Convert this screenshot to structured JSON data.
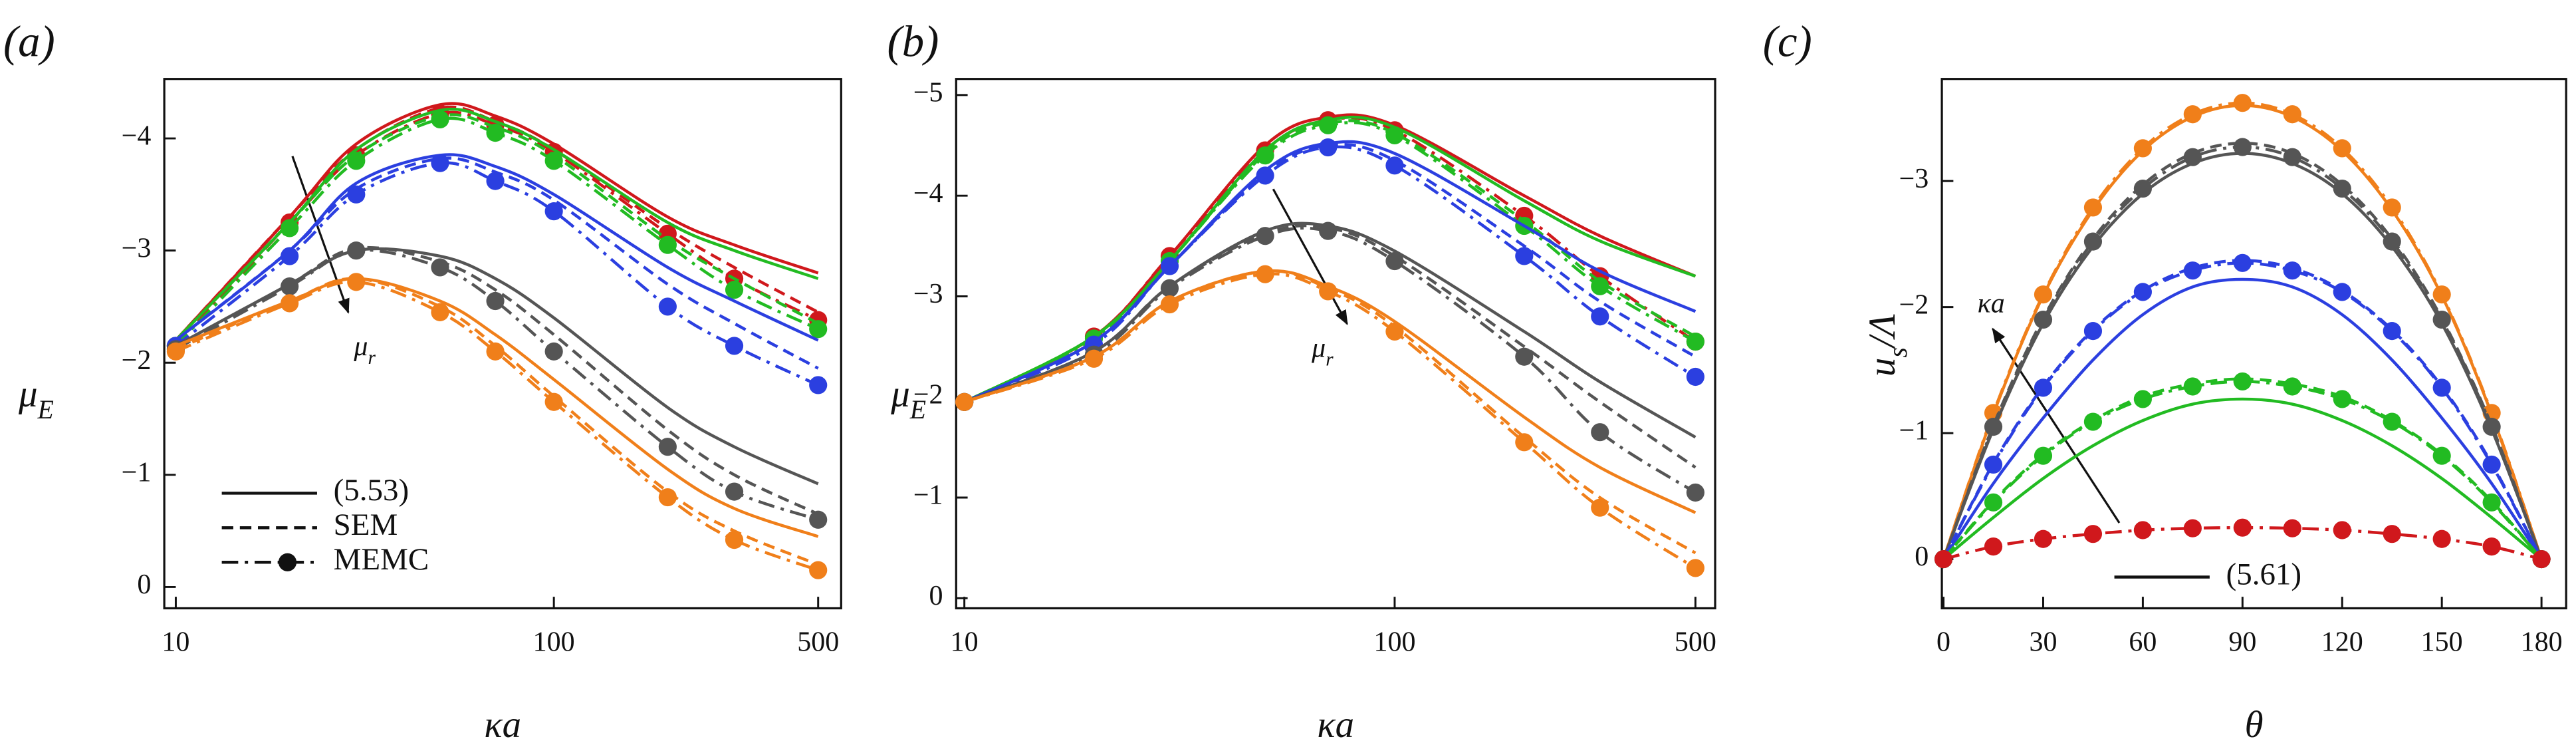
{
  "chart_data": [
    {
      "type": "line",
      "panel_label": "(a)",
      "xscale": "log",
      "xlabel": "κa",
      "ylabel": {
        "base": "μ",
        "sub": "E"
      },
      "annotation": {
        "base": "μ",
        "sub": "r"
      },
      "xlim": [
        10,
        500
      ],
      "xticks": [
        10,
        100,
        500
      ],
      "ylim": [
        0.19,
        -4.53
      ],
      "yticks": [
        0,
        {
          "value": -1,
          "label": "−1"
        },
        {
          "value": -2,
          "label": "−2"
        },
        {
          "value": -3,
          "label": "−3"
        },
        {
          "value": -4,
          "label": "−4"
        }
      ],
      "legend": [
        {
          "label": "(5.53)",
          "style": "solid"
        },
        {
          "label": "SEM",
          "style": "dashed"
        },
        {
          "label": "MEMC",
          "style": "dashdot",
          "marker": true
        }
      ],
      "x": [
        10,
        20,
        30,
        50,
        70,
        100,
        200,
        300,
        500
      ],
      "series": [
        {
          "color": "#d0181c",
          "style": "solid",
          "values": [
            -2.2,
            -3.3,
            -3.95,
            -4.3,
            -4.2,
            -3.95,
            -3.3,
            -3.05,
            -2.8
          ]
        },
        {
          "color": "#d0181c",
          "style": "dashed",
          "values": [
            -2.2,
            -3.3,
            -3.9,
            -4.27,
            -4.15,
            -3.9,
            -3.2,
            -2.85,
            -2.45
          ]
        },
        {
          "color": "#d0181c",
          "style": "dashdot",
          "marker": true,
          "values": [
            -2.15,
            -3.25,
            -3.85,
            -4.22,
            -4.12,
            -3.88,
            -3.15,
            -2.75,
            -2.38
          ]
        },
        {
          "color": "#22bb22",
          "style": "solid",
          "values": [
            -2.2,
            -3.25,
            -3.9,
            -4.25,
            -4.15,
            -3.9,
            -3.25,
            -3.0,
            -2.75
          ]
        },
        {
          "color": "#22bb22",
          "style": "dashed",
          "values": [
            -2.2,
            -3.25,
            -3.85,
            -4.2,
            -4.1,
            -3.85,
            -3.1,
            -2.75,
            -2.35
          ]
        },
        {
          "color": "#22bb22",
          "style": "dashdot",
          "marker": true,
          "values": [
            -2.15,
            -3.2,
            -3.8,
            -4.17,
            -4.05,
            -3.8,
            -3.05,
            -2.65,
            -2.3
          ]
        },
        {
          "color": "#2b3fe0",
          "style": "solid",
          "values": [
            -2.2,
            -3.0,
            -3.6,
            -3.85,
            -3.75,
            -3.5,
            -2.85,
            -2.55,
            -2.2
          ]
        },
        {
          "color": "#2b3fe0",
          "style": "dashed",
          "values": [
            -2.2,
            -3.0,
            -3.55,
            -3.82,
            -3.7,
            -3.45,
            -2.7,
            -2.35,
            -1.95
          ]
        },
        {
          "color": "#2b3fe0",
          "style": "dashdot",
          "marker": true,
          "values": [
            -2.15,
            -2.95,
            -3.5,
            -3.78,
            -3.62,
            -3.35,
            -2.5,
            -2.15,
            -1.8
          ]
        },
        {
          "color": "#555555",
          "style": "solid",
          "values": [
            -2.15,
            -2.7,
            -3.0,
            -2.95,
            -2.75,
            -2.4,
            -1.6,
            -1.25,
            -0.92
          ]
        },
        {
          "color": "#555555",
          "style": "dashed",
          "values": [
            -2.15,
            -2.7,
            -3.02,
            -2.9,
            -2.65,
            -2.25,
            -1.4,
            -1.0,
            -0.65
          ]
        },
        {
          "color": "#555555",
          "style": "dashdot",
          "marker": true,
          "values": [
            -2.12,
            -2.68,
            -3.0,
            -2.85,
            -2.55,
            -2.1,
            -1.25,
            -0.85,
            -0.6
          ]
        },
        {
          "color": "#f07f1a",
          "style": "solid",
          "values": [
            -2.15,
            -2.55,
            -2.75,
            -2.55,
            -2.25,
            -1.85,
            -1.05,
            -0.7,
            -0.45
          ]
        },
        {
          "color": "#f07f1a",
          "style": "dashed",
          "values": [
            -2.12,
            -2.55,
            -2.75,
            -2.5,
            -2.15,
            -1.7,
            -0.85,
            -0.5,
            -0.2
          ]
        },
        {
          "color": "#f07f1a",
          "style": "dashdot",
          "marker": true,
          "values": [
            -2.1,
            -2.53,
            -2.72,
            -2.45,
            -2.1,
            -1.65,
            -0.8,
            -0.42,
            -0.15
          ]
        }
      ]
    },
    {
      "type": "line",
      "panel_label": "(b)",
      "xscale": "log",
      "xlabel": "κa",
      "ylabel": {
        "base": "μ",
        "sub": "E"
      },
      "annotation": {
        "base": "μ",
        "sub": "r"
      },
      "xlim": [
        10,
        500
      ],
      "xticks": [
        10,
        100,
        500
      ],
      "ylim": [
        0.1,
        -5.16
      ],
      "yticks": [
        0,
        {
          "value": -1,
          "label": "−1"
        },
        {
          "value": -2,
          "label": "−2"
        },
        {
          "value": -3,
          "label": "−3"
        },
        {
          "value": -4,
          "label": "−4"
        },
        {
          "value": -5,
          "label": "−5"
        }
      ],
      "x": [
        10,
        20,
        30,
        50,
        70,
        100,
        200,
        300,
        500
      ],
      "series": [
        {
          "color": "#d0181c",
          "style": "solid",
          "values": [
            -1.95,
            -2.6,
            -3.4,
            -4.5,
            -4.78,
            -4.7,
            -4.0,
            -3.6,
            -3.2
          ]
        },
        {
          "color": "#d0181c",
          "style": "dashdot",
          "marker": true,
          "values": [
            -1.95,
            -2.6,
            -3.4,
            -4.45,
            -4.75,
            -4.65,
            -3.8,
            -3.2,
            -2.55
          ]
        },
        {
          "color": "#22bb22",
          "style": "solid",
          "values": [
            -1.95,
            -2.6,
            -3.35,
            -4.45,
            -4.75,
            -4.68,
            -3.95,
            -3.55,
            -3.2
          ]
        },
        {
          "color": "#22bb22",
          "style": "dashed",
          "values": [
            -1.95,
            -2.6,
            -3.35,
            -4.42,
            -4.72,
            -4.62,
            -3.75,
            -3.15,
            -2.6
          ]
        },
        {
          "color": "#22bb22",
          "style": "dashdot",
          "marker": true,
          "values": [
            -1.95,
            -2.58,
            -3.35,
            -4.4,
            -4.7,
            -4.6,
            -3.7,
            -3.1,
            -2.55
          ]
        },
        {
          "color": "#2b3fe0",
          "style": "solid",
          "values": [
            -1.95,
            -2.55,
            -3.3,
            -4.25,
            -4.52,
            -4.42,
            -3.7,
            -3.25,
            -2.85
          ]
        },
        {
          "color": "#2b3fe0",
          "style": "dashed",
          "values": [
            -1.95,
            -2.55,
            -3.3,
            -4.22,
            -4.5,
            -4.35,
            -3.5,
            -2.95,
            -2.4
          ]
        },
        {
          "color": "#2b3fe0",
          "style": "dashdot",
          "marker": true,
          "values": [
            -1.95,
            -2.52,
            -3.3,
            -4.2,
            -4.48,
            -4.3,
            -3.4,
            -2.8,
            -2.2
          ]
        },
        {
          "color": "#555555",
          "style": "solid",
          "values": [
            -1.95,
            -2.45,
            -3.1,
            -3.65,
            -3.7,
            -3.45,
            -2.65,
            -2.15,
            -1.6
          ]
        },
        {
          "color": "#555555",
          "style": "dashed",
          "values": [
            -1.95,
            -2.45,
            -3.1,
            -3.62,
            -3.68,
            -3.4,
            -2.5,
            -1.95,
            -1.3
          ]
        },
        {
          "color": "#555555",
          "style": "dashdot",
          "marker": true,
          "values": [
            -1.95,
            -2.42,
            -3.08,
            -3.6,
            -3.65,
            -3.35,
            -2.4,
            -1.65,
            -1.05
          ]
        },
        {
          "color": "#f07f1a",
          "style": "solid",
          "values": [
            -1.95,
            -2.4,
            -2.95,
            -3.25,
            -3.1,
            -2.75,
            -1.8,
            -1.3,
            -0.85
          ]
        },
        {
          "color": "#f07f1a",
          "style": "dashed",
          "values": [
            -1.95,
            -2.4,
            -2.95,
            -3.25,
            -3.08,
            -2.7,
            -1.6,
            -1.0,
            -0.45
          ]
        },
        {
          "color": "#f07f1a",
          "style": "dashdot",
          "marker": true,
          "values": [
            -1.95,
            -2.38,
            -2.92,
            -3.22,
            -3.05,
            -2.65,
            -1.55,
            -0.9,
            -0.3
          ]
        }
      ]
    },
    {
      "type": "line",
      "panel_label": "(c)",
      "xscale": "linear",
      "xlabel": "θ",
      "ylabel": {
        "base": "u",
        "sub": "s",
        "rest": "/Λ"
      },
      "annotation": "κa",
      "xlim": [
        0,
        180
      ],
      "xticks": [
        0,
        30,
        60,
        90,
        120,
        150,
        180
      ],
      "ylim": [
        0.39,
        -3.81
      ],
      "yticks": [
        0,
        {
          "value": -1,
          "label": "−1"
        },
        {
          "value": -2,
          "label": "−2"
        },
        {
          "value": -3,
          "label": "−3"
        }
      ],
      "legend": [
        {
          "label": "(5.61)",
          "style": "solid"
        }
      ],
      "x": [
        0,
        15,
        30,
        45,
        60,
        75,
        90,
        105,
        120,
        135,
        150,
        165,
        180
      ],
      "series": [
        {
          "color": "#f07f1a",
          "style": "solid",
          "values": [
            0,
            -1.15,
            -2.09,
            -2.77,
            -3.24,
            -3.51,
            -3.6,
            -3.51,
            -3.24,
            -2.77,
            -2.09,
            -1.15,
            0
          ]
        },
        {
          "color": "#f07f1a",
          "style": "dashdot",
          "marker": true,
          "values": [
            0,
            -1.16,
            -2.1,
            -2.79,
            -3.26,
            -3.53,
            -3.62,
            -3.53,
            -3.26,
            -2.79,
            -2.1,
            -1.16,
            0
          ]
        },
        {
          "color": "#555555",
          "style": "solid",
          "values": [
            0,
            -1.03,
            -1.87,
            -2.48,
            -2.9,
            -3.14,
            -3.22,
            -3.14,
            -2.9,
            -2.48,
            -1.87,
            -1.03,
            0
          ]
        },
        {
          "color": "#555555",
          "style": "dashed",
          "values": [
            0,
            -1.06,
            -1.91,
            -2.54,
            -2.97,
            -3.22,
            -3.3,
            -3.22,
            -2.97,
            -2.54,
            -1.91,
            -1.06,
            0
          ]
        },
        {
          "color": "#555555",
          "style": "dashdot",
          "marker": true,
          "values": [
            0,
            -1.05,
            -1.9,
            -2.52,
            -2.94,
            -3.19,
            -3.27,
            -3.19,
            -2.94,
            -2.52,
            -1.9,
            -1.05,
            0
          ]
        },
        {
          "color": "#2b3fe0",
          "style": "solid",
          "values": [
            0,
            -0.6,
            -1.12,
            -1.58,
            -1.94,
            -2.16,
            -2.22,
            -2.16,
            -1.94,
            -1.58,
            -1.12,
            -0.6,
            0
          ]
        },
        {
          "color": "#2b3fe0",
          "style": "dashed",
          "values": [
            0,
            -0.76,
            -1.37,
            -1.82,
            -2.13,
            -2.31,
            -2.37,
            -2.31,
            -2.13,
            -1.82,
            -1.37,
            -0.76,
            0
          ]
        },
        {
          "color": "#2b3fe0",
          "style": "dashdot",
          "marker": true,
          "values": [
            0,
            -0.75,
            -1.36,
            -1.81,
            -2.12,
            -2.29,
            -2.35,
            -2.29,
            -2.12,
            -1.81,
            -1.36,
            -0.75,
            0
          ]
        },
        {
          "color": "#22bb22",
          "style": "solid",
          "values": [
            0,
            -0.33,
            -0.64,
            -0.9,
            -1.1,
            -1.23,
            -1.27,
            -1.23,
            -1.1,
            -0.9,
            -0.64,
            -0.33,
            0
          ]
        },
        {
          "color": "#22bb22",
          "style": "dashed",
          "values": [
            0,
            -0.46,
            -0.83,
            -1.1,
            -1.29,
            -1.39,
            -1.43,
            -1.39,
            -1.29,
            -1.1,
            -0.83,
            -0.46,
            0
          ]
        },
        {
          "color": "#22bb22",
          "style": "dashdot",
          "marker": true,
          "values": [
            0,
            -0.45,
            -0.82,
            -1.09,
            -1.27,
            -1.37,
            -1.41,
            -1.37,
            -1.27,
            -1.09,
            -0.82,
            -0.45,
            0
          ]
        },
        {
          "color": "#d0181c",
          "style": "dashdot",
          "marker": true,
          "values": [
            0,
            -0.1,
            -0.16,
            -0.2,
            -0.23,
            -0.245,
            -0.25,
            -0.245,
            -0.23,
            -0.2,
            -0.16,
            -0.1,
            0
          ]
        }
      ]
    }
  ]
}
